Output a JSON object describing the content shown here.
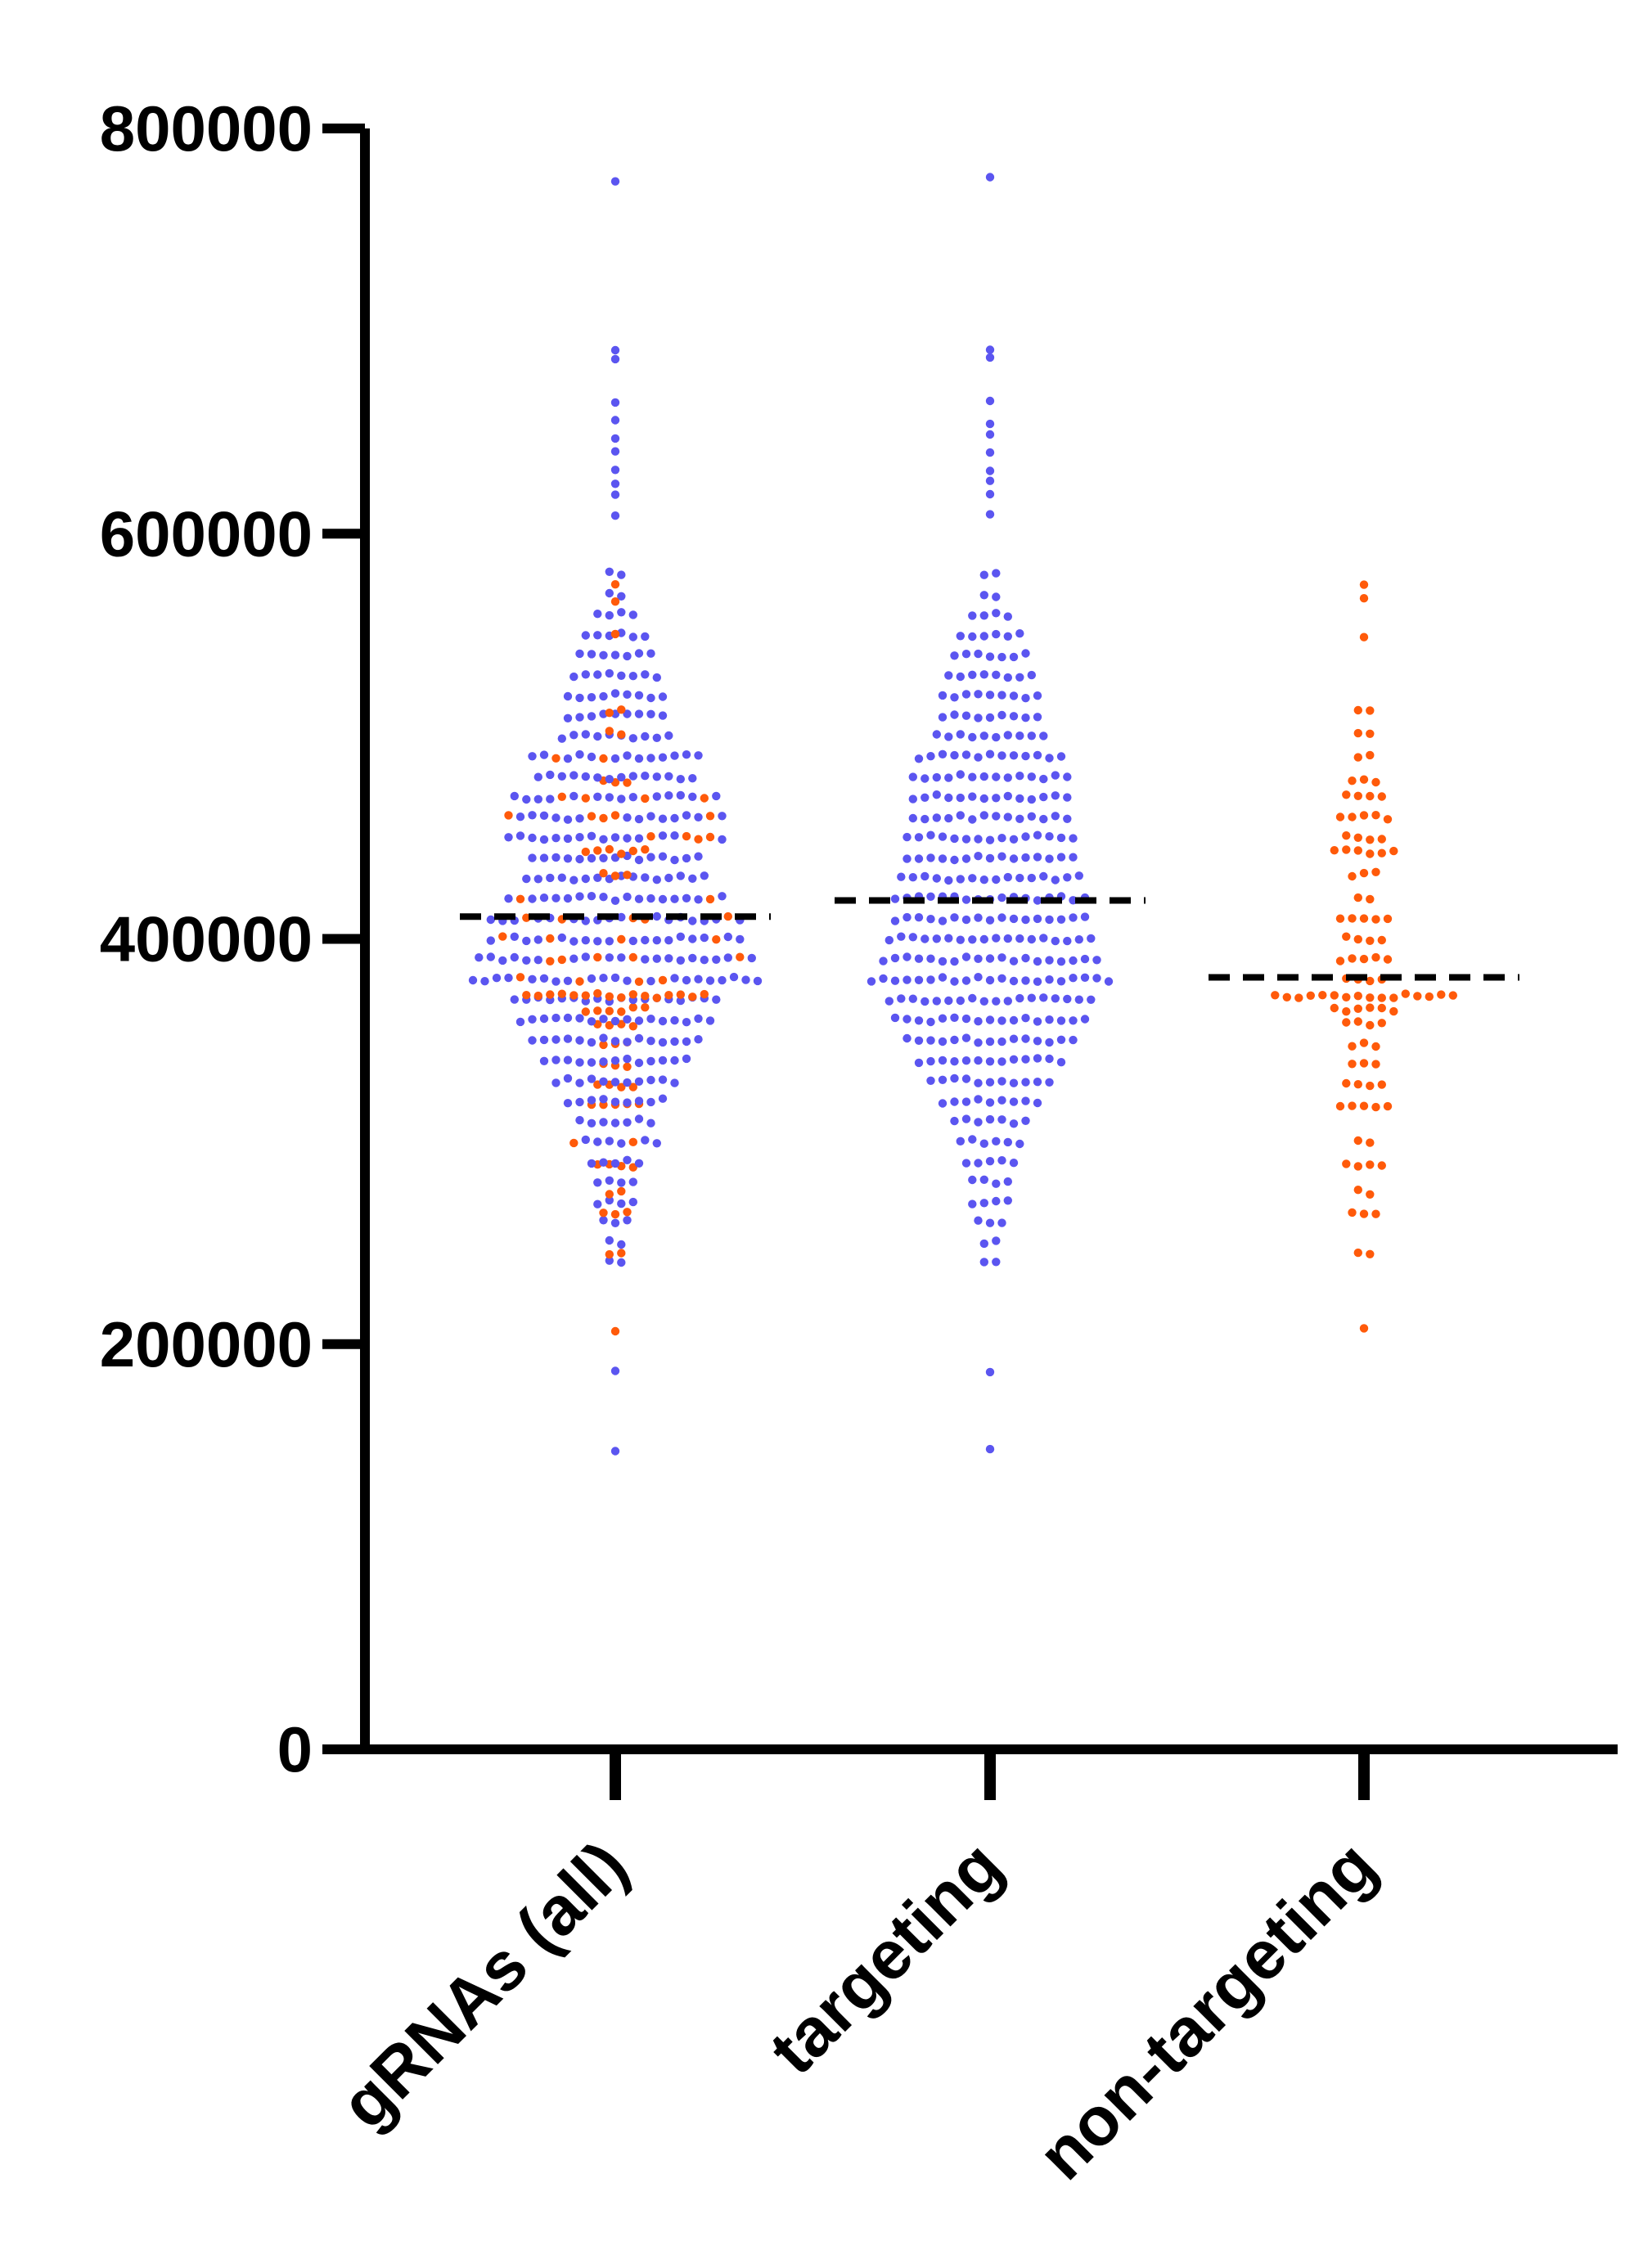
{
  "chart_data": {
    "type": "scatter",
    "subtype": "beeswarm",
    "categories": [
      "gRNAs (all)",
      "targeting",
      "non-targeting"
    ],
    "ylim": [
      0,
      800000
    ],
    "yticks": [
      0,
      200000,
      400000,
      600000,
      800000
    ],
    "ytick_labels": [
      "0",
      "200000",
      "400000",
      "600000",
      "800000"
    ],
    "xlabel": "",
    "ylabel": "",
    "title": "",
    "grid": false,
    "colors": {
      "targeting": "#5b55f0",
      "non_targeting": "#ff5a0a",
      "median_line": "#000000"
    },
    "medians": [
      411000,
      419000,
      381000
    ],
    "series": [
      {
        "group": "targeting",
        "extremes": [
          775000,
          690000,
          686000,
          665000,
          655000,
          648000,
          640000,
          632000,
          625000,
          620000,
          610000,
          186000,
          147000
        ],
        "bulk": [
          {
            "y": 580000,
            "n": 2
          },
          {
            "y": 570000,
            "n": 2
          },
          {
            "y": 560000,
            "n": 4
          },
          {
            "y": 550000,
            "n": 6
          },
          {
            "y": 540000,
            "n": 7
          },
          {
            "y": 530000,
            "n": 8
          },
          {
            "y": 520000,
            "n": 9
          },
          {
            "y": 510000,
            "n": 9
          },
          {
            "y": 500000,
            "n": 10
          },
          {
            "y": 490000,
            "n": 13
          },
          {
            "y": 480000,
            "n": 14
          },
          {
            "y": 470000,
            "n": 14
          },
          {
            "y": 460000,
            "n": 14
          },
          {
            "y": 450000,
            "n": 15
          },
          {
            "y": 440000,
            "n": 15
          },
          {
            "y": 430000,
            "n": 16
          },
          {
            "y": 420000,
            "n": 17
          },
          {
            "y": 410000,
            "n": 17
          },
          {
            "y": 400000,
            "n": 18
          },
          {
            "y": 390000,
            "n": 19
          },
          {
            "y": 380000,
            "n": 21
          },
          {
            "y": 370000,
            "n": 18
          },
          {
            "y": 360000,
            "n": 17
          },
          {
            "y": 350000,
            "n": 15
          },
          {
            "y": 340000,
            "n": 13
          },
          {
            "y": 330000,
            "n": 11
          },
          {
            "y": 320000,
            "n": 9
          },
          {
            "y": 310000,
            "n": 7
          },
          {
            "y": 300000,
            "n": 6
          },
          {
            "y": 290000,
            "n": 5
          },
          {
            "y": 280000,
            "n": 4
          },
          {
            "y": 270000,
            "n": 4
          },
          {
            "y": 260000,
            "n": 3
          },
          {
            "y": 250000,
            "n": 2
          },
          {
            "y": 240000,
            "n": 2
          }
        ]
      },
      {
        "group": "non-targeting",
        "extremes": [
          575000,
          567000,
          550000,
          207000
        ],
        "bulk": [
          {
            "y": 512000,
            "n": 2
          },
          {
            "y": 502000,
            "n": 2
          },
          {
            "y": 490000,
            "n": 2
          },
          {
            "y": 478000,
            "n": 3
          },
          {
            "y": 470000,
            "n": 4
          },
          {
            "y": 460000,
            "n": 5
          },
          {
            "y": 450000,
            "n": 4
          },
          {
            "y": 443000,
            "n": 6
          },
          {
            "y": 432000,
            "n": 3
          },
          {
            "y": 420000,
            "n": 2
          },
          {
            "y": 410000,
            "n": 5
          },
          {
            "y": 400000,
            "n": 4
          },
          {
            "y": 390000,
            "n": 5
          },
          {
            "y": 380000,
            "n": 4
          },
          {
            "y": 372000,
            "n": 16
          },
          {
            "y": 365000,
            "n": 6
          },
          {
            "y": 358000,
            "n": 4
          },
          {
            "y": 348000,
            "n": 3
          },
          {
            "y": 338000,
            "n": 3
          },
          {
            "y": 328000,
            "n": 4
          },
          {
            "y": 318000,
            "n": 5
          },
          {
            "y": 300000,
            "n": 2
          },
          {
            "y": 288000,
            "n": 4
          },
          {
            "y": 275000,
            "n": 2
          },
          {
            "y": 265000,
            "n": 3
          },
          {
            "y": 245000,
            "n": 2
          }
        ]
      }
    ]
  }
}
